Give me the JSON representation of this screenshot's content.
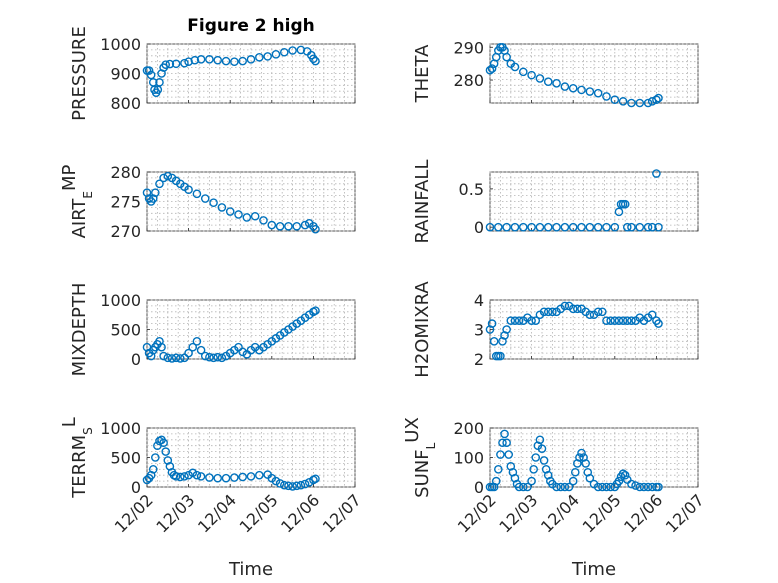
{
  "figure": {
    "title": "Figure 2 high",
    "marker_color": "#0072bd"
  },
  "chart_data": [
    {
      "type": "scatter",
      "ylabel": "PRESSURE",
      "xlim": [
        0,
        5
      ],
      "ylim": [
        800,
        1000
      ],
      "yticks": [
        800,
        900,
        1000
      ],
      "ytick_labels": [
        "800",
        "900",
        "1000"
      ],
      "x": [
        0.0,
        0.05,
        0.1,
        0.15,
        0.18,
        0.22,
        0.26,
        0.3,
        0.35,
        0.4,
        0.45,
        0.55,
        0.7,
        0.9,
        1.0,
        1.15,
        1.3,
        1.5,
        1.7,
        1.9,
        2.1,
        2.3,
        2.5,
        2.7,
        2.9,
        3.1,
        3.3,
        3.5,
        3.7,
        3.85,
        3.95,
        4.0,
        4.05
      ],
      "values": [
        910,
        910,
        895,
        870,
        845,
        835,
        845,
        870,
        900,
        920,
        930,
        932,
        933,
        935,
        940,
        945,
        948,
        948,
        945,
        942,
        940,
        942,
        948,
        955,
        958,
        965,
        972,
        978,
        980,
        975,
        962,
        950,
        942
      ],
      "grid": true
    },
    {
      "type": "scatter",
      "ylabel": "THETA",
      "xlim": [
        0,
        5
      ],
      "ylim": [
        273,
        291
      ],
      "yticks": [
        280,
        290
      ],
      "ytick_labels": [
        "280",
        "290"
      ],
      "x": [
        0.0,
        0.05,
        0.1,
        0.15,
        0.2,
        0.25,
        0.3,
        0.35,
        0.4,
        0.5,
        0.6,
        0.8,
        1.0,
        1.2,
        1.4,
        1.6,
        1.8,
        2.0,
        2.2,
        2.4,
        2.6,
        2.8,
        3.0,
        3.2,
        3.4,
        3.6,
        3.8,
        3.9,
        4.0,
        4.05
      ],
      "values": [
        283,
        283.5,
        285,
        287,
        289,
        290,
        290,
        289,
        287,
        285,
        284,
        282.5,
        281.5,
        280.5,
        279.5,
        279,
        278,
        277.5,
        277,
        276.5,
        276,
        275,
        274,
        273.5,
        273,
        273,
        273,
        273.5,
        274,
        274.5
      ],
      "grid": true
    },
    {
      "type": "scatter",
      "ylabel": "AIR_TEMP",
      "xlim": [
        0,
        5
      ],
      "ylim": [
        270,
        280
      ],
      "yticks": [
        270,
        275,
        280
      ],
      "ytick_labels": [
        "270",
        "275",
        "280"
      ],
      "x": [
        0.0,
        0.05,
        0.1,
        0.15,
        0.2,
        0.3,
        0.4,
        0.5,
        0.6,
        0.7,
        0.8,
        0.9,
        1.0,
        1.2,
        1.4,
        1.6,
        1.8,
        2.0,
        2.2,
        2.4,
        2.6,
        2.8,
        3.0,
        3.2,
        3.4,
        3.6,
        3.8,
        3.9,
        4.0,
        4.05
      ],
      "values": [
        276.5,
        275.5,
        275,
        275.5,
        276.5,
        278,
        279,
        279.3,
        279,
        278.5,
        278,
        277.5,
        277,
        276.3,
        275.5,
        274.8,
        274,
        273.3,
        272.8,
        272.3,
        272.5,
        271.8,
        271,
        270.8,
        270.8,
        270.8,
        271,
        271.3,
        270.8,
        270.3
      ],
      "grid": true
    },
    {
      "type": "scatter",
      "ylabel": "RAINFALL",
      "xlim": [
        0,
        5
      ],
      "ylim": [
        -0.05,
        0.72
      ],
      "yticks": [
        0,
        0.5
      ],
      "ytick_labels": [
        "0",
        "0.5"
      ],
      "x": [
        0.0,
        0.2,
        0.4,
        0.6,
        0.8,
        1.0,
        1.2,
        1.4,
        1.6,
        1.8,
        2.0,
        2.2,
        2.4,
        2.6,
        2.8,
        3.0,
        3.1,
        3.15,
        3.2,
        3.25,
        3.3,
        3.4,
        3.6,
        3.8,
        3.9,
        4.0,
        4.05
      ],
      "values": [
        0,
        0,
        0,
        0,
        0,
        0,
        0,
        0,
        0,
        0,
        0,
        0,
        0,
        0,
        0,
        0,
        0.2,
        0.3,
        0.3,
        0.3,
        0,
        0,
        0,
        0,
        0,
        0.7,
        0
      ],
      "grid": true
    },
    {
      "type": "scatter",
      "ylabel": "MIXDEPTH",
      "xlim": [
        0,
        5
      ],
      "ylim": [
        0,
        1000
      ],
      "yticks": [
        0,
        500,
        1000
      ],
      "ytick_labels": [
        "0",
        "500",
        "1000"
      ],
      "x": [
        0.0,
        0.05,
        0.1,
        0.15,
        0.2,
        0.25,
        0.3,
        0.35,
        0.4,
        0.5,
        0.6,
        0.7,
        0.8,
        0.9,
        1.0,
        1.1,
        1.2,
        1.3,
        1.4,
        1.5,
        1.6,
        1.7,
        1.8,
        1.9,
        2.0,
        2.1,
        2.2,
        2.3,
        2.4,
        2.5,
        2.6,
        2.7,
        2.8,
        2.9,
        3.0,
        3.1,
        3.2,
        3.3,
        3.4,
        3.5,
        3.6,
        3.7,
        3.8,
        3.9,
        4.0,
        4.05
      ],
      "values": [
        200,
        100,
        50,
        150,
        200,
        250,
        300,
        200,
        50,
        20,
        10,
        20,
        10,
        20,
        100,
        200,
        300,
        150,
        50,
        30,
        20,
        30,
        20,
        50,
        100,
        150,
        200,
        120,
        80,
        150,
        200,
        150,
        200,
        250,
        300,
        350,
        400,
        450,
        500,
        550,
        600,
        650,
        700,
        750,
        800,
        820
      ],
      "grid": true
    },
    {
      "type": "scatter",
      "ylabel": "H2OMIXRA",
      "xlim": [
        0,
        5
      ],
      "ylim": [
        2,
        4
      ],
      "yticks": [
        2,
        3,
        4
      ],
      "ytick_labels": [
        "2",
        "3",
        "4"
      ],
      "x": [
        0.0,
        0.05,
        0.1,
        0.15,
        0.2,
        0.25,
        0.3,
        0.35,
        0.4,
        0.5,
        0.6,
        0.7,
        0.8,
        0.9,
        1.0,
        1.1,
        1.2,
        1.3,
        1.4,
        1.5,
        1.6,
        1.7,
        1.8,
        1.9,
        2.0,
        2.1,
        2.2,
        2.3,
        2.4,
        2.5,
        2.6,
        2.7,
        2.8,
        2.9,
        3.0,
        3.1,
        3.2,
        3.3,
        3.4,
        3.5,
        3.6,
        3.7,
        3.8,
        3.9,
        4.0,
        4.05
      ],
      "values": [
        3.0,
        3.2,
        2.6,
        2.1,
        2.1,
        2.1,
        2.6,
        2.8,
        3.0,
        3.3,
        3.3,
        3.3,
        3.3,
        3.4,
        3.3,
        3.3,
        3.5,
        3.6,
        3.6,
        3.6,
        3.6,
        3.7,
        3.8,
        3.8,
        3.7,
        3.7,
        3.7,
        3.6,
        3.5,
        3.5,
        3.6,
        3.6,
        3.3,
        3.3,
        3.3,
        3.3,
        3.3,
        3.3,
        3.3,
        3.3,
        3.4,
        3.3,
        3.4,
        3.5,
        3.3,
        3.2
      ],
      "grid": true
    },
    {
      "type": "scatter",
      "ylabel": "TERR_MSL",
      "xlim": [
        0,
        5
      ],
      "ylim": [
        0,
        1000
      ],
      "yticks": [
        0,
        500,
        1000
      ],
      "ytick_labels": [
        "0",
        "500",
        "1000"
      ],
      "x": [
        0.0,
        0.05,
        0.1,
        0.15,
        0.2,
        0.25,
        0.3,
        0.35,
        0.4,
        0.45,
        0.5,
        0.55,
        0.6,
        0.65,
        0.7,
        0.8,
        0.9,
        1.0,
        1.1,
        1.2,
        1.3,
        1.5,
        1.7,
        1.9,
        2.1,
        2.3,
        2.5,
        2.7,
        2.9,
        3.0,
        3.1,
        3.2,
        3.3,
        3.4,
        3.5,
        3.6,
        3.7,
        3.8,
        3.9,
        4.0,
        4.05
      ],
      "values": [
        120,
        150,
        200,
        300,
        500,
        700,
        780,
        800,
        750,
        600,
        450,
        350,
        250,
        200,
        180,
        170,
        180,
        200,
        240,
        200,
        180,
        160,
        150,
        150,
        160,
        170,
        180,
        200,
        210,
        150,
        100,
        60,
        30,
        20,
        10,
        20,
        30,
        50,
        80,
        120,
        140
      ],
      "grid": true
    },
    {
      "type": "scatter",
      "ylabel": "SUN_FLUX",
      "xlim": [
        0,
        5
      ],
      "ylim": [
        0,
        200
      ],
      "yticks": [
        0,
        100,
        200
      ],
      "ytick_labels": [
        "0",
        "100",
        "200"
      ],
      "x": [
        0.0,
        0.05,
        0.1,
        0.15,
        0.2,
        0.25,
        0.3,
        0.35,
        0.4,
        0.45,
        0.5,
        0.55,
        0.6,
        0.65,
        0.7,
        0.8,
        0.9,
        1.0,
        1.05,
        1.1,
        1.15,
        1.2,
        1.25,
        1.3,
        1.35,
        1.4,
        1.45,
        1.5,
        1.6,
        1.7,
        1.8,
        1.9,
        2.0,
        2.05,
        2.1,
        2.15,
        2.2,
        2.25,
        2.3,
        2.35,
        2.4,
        2.5,
        2.6,
        2.7,
        2.8,
        2.9,
        3.0,
        3.05,
        3.1,
        3.15,
        3.2,
        3.25,
        3.3,
        3.4,
        3.5,
        3.6,
        3.7,
        3.8,
        3.9,
        4.0,
        4.05
      ],
      "values": [
        0,
        0,
        0,
        20,
        60,
        110,
        150,
        180,
        150,
        110,
        70,
        50,
        30,
        10,
        0,
        0,
        0,
        20,
        60,
        100,
        140,
        160,
        130,
        90,
        60,
        40,
        20,
        10,
        0,
        0,
        0,
        0,
        20,
        50,
        80,
        100,
        115,
        100,
        80,
        50,
        30,
        10,
        0,
        0,
        0,
        0,
        0,
        10,
        20,
        35,
        45,
        40,
        25,
        10,
        5,
        0,
        0,
        0,
        0,
        0,
        0
      ],
      "grid": true
    }
  ],
  "xaxis": {
    "ticks": [
      0,
      1,
      2,
      3,
      4,
      5
    ],
    "tick_labels": [
      "12/02",
      "12/03",
      "12/04",
      "12/05",
      "12/06",
      "12/07"
    ],
    "xlabel": "Time"
  }
}
